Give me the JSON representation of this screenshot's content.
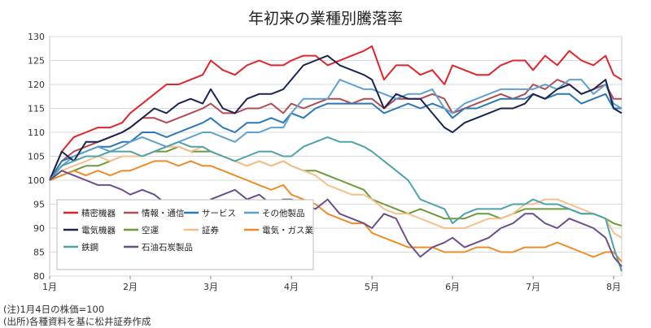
{
  "chart_data": {
    "type": "line",
    "title": "年初来の業種別騰落率",
    "xlabel": "",
    "ylabel": "",
    "ylim": [
      80,
      130
    ],
    "yticks": [
      80,
      85,
      90,
      95,
      100,
      105,
      110,
      115,
      120,
      125,
      130
    ],
    "xticks": [
      {
        "label": "1月",
        "x": 0
      },
      {
        "label": "2月",
        "x": 1
      },
      {
        "label": "3月",
        "x": 2
      },
      {
        "label": "4月",
        "x": 3
      },
      {
        "label": "5月",
        "x": 4
      },
      {
        "label": "6月",
        "x": 5
      },
      {
        "label": "7月",
        "x": 6
      },
      {
        "label": "8月",
        "x": 7
      }
    ],
    "xlim": [
      0,
      7.1
    ],
    "grid": "horizontal",
    "legend_placement": "bottom-left",
    "series": [
      {
        "name": "精密機器",
        "color": "#e3232a",
        "x": [
          0,
          0.15,
          0.3,
          0.45,
          0.6,
          0.75,
          0.9,
          1.0,
          1.15,
          1.3,
          1.45,
          1.6,
          1.75,
          1.9,
          2.0,
          2.15,
          2.3,
          2.45,
          2.6,
          2.75,
          2.9,
          3.0,
          3.15,
          3.3,
          3.45,
          3.6,
          3.75,
          3.9,
          4.0,
          4.15,
          4.3,
          4.45,
          4.6,
          4.75,
          4.9,
          5.0,
          5.15,
          5.3,
          5.45,
          5.6,
          5.75,
          5.9,
          6.0,
          6.15,
          6.3,
          6.45,
          6.6,
          6.75,
          6.9,
          7.0,
          7.1
        ],
        "y": [
          100,
          106,
          109,
          110,
          111,
          111,
          112,
          114,
          116,
          118,
          120,
          120,
          121,
          122,
          125,
          123,
          122,
          124,
          125,
          124,
          124,
          125,
          126,
          126,
          124,
          125,
          126,
          127,
          128,
          121,
          124,
          124,
          122,
          123,
          120,
          124,
          123,
          122,
          122,
          124,
          125,
          125,
          123,
          126,
          124,
          127,
          125,
          124,
          126,
          122,
          121
        ]
      },
      {
        "name": "情報・通信",
        "color": "#b24b53",
        "x": [
          0,
          0.15,
          0.3,
          0.45,
          0.6,
          0.75,
          0.9,
          1.0,
          1.15,
          1.3,
          1.45,
          1.6,
          1.75,
          1.9,
          2.0,
          2.15,
          2.3,
          2.45,
          2.6,
          2.75,
          2.9,
          3.0,
          3.15,
          3.3,
          3.45,
          3.6,
          3.75,
          3.9,
          4.0,
          4.15,
          4.3,
          4.45,
          4.6,
          4.75,
          4.9,
          5.0,
          5.15,
          5.3,
          5.45,
          5.6,
          5.75,
          5.9,
          6.0,
          6.15,
          6.3,
          6.45,
          6.6,
          6.75,
          6.9,
          7.0,
          7.1
        ],
        "y": [
          100,
          104,
          106,
          107,
          108,
          109,
          110,
          111,
          113,
          113,
          112,
          113,
          114,
          115,
          116,
          114,
          114,
          115,
          115,
          116,
          114,
          116,
          115,
          116,
          117,
          117,
          116,
          117,
          117,
          115,
          117,
          117,
          117,
          118,
          117,
          114,
          115,
          116,
          117,
          118,
          117,
          118,
          120,
          119,
          121,
          120,
          118,
          119,
          120,
          117,
          117
        ]
      },
      {
        "name": "サービス",
        "color": "#2a78b8",
        "x": [
          0,
          0.15,
          0.3,
          0.45,
          0.6,
          0.75,
          0.9,
          1.0,
          1.15,
          1.3,
          1.45,
          1.6,
          1.75,
          1.9,
          2.0,
          2.15,
          2.3,
          2.45,
          2.6,
          2.75,
          2.9,
          3.0,
          3.15,
          3.3,
          3.45,
          3.6,
          3.75,
          3.9,
          4.0,
          4.15,
          4.3,
          4.45,
          4.6,
          4.75,
          4.9,
          5.0,
          5.15,
          5.3,
          5.45,
          5.6,
          5.75,
          5.9,
          6.0,
          6.15,
          6.3,
          6.45,
          6.6,
          6.75,
          6.9,
          7.0,
          7.1
        ],
        "y": [
          100,
          104,
          105,
          106,
          107,
          107,
          108,
          108,
          110,
          110,
          109,
          110,
          111,
          112,
          113,
          111,
          110,
          112,
          112,
          113,
          112,
          114,
          113,
          115,
          116,
          116,
          116,
          116,
          116,
          114,
          115,
          116,
          115,
          116,
          115,
          113,
          115,
          115,
          116,
          117,
          117,
          117,
          118,
          117,
          118,
          118,
          116,
          117,
          118,
          115,
          115
        ]
      },
      {
        "name": "その他製品",
        "color": "#5fa0cf",
        "x": [
          0,
          0.15,
          0.3,
          0.45,
          0.6,
          0.75,
          0.9,
          1.0,
          1.15,
          1.3,
          1.45,
          1.6,
          1.75,
          1.9,
          2.0,
          2.15,
          2.3,
          2.45,
          2.6,
          2.75,
          2.9,
          3.0,
          3.15,
          3.3,
          3.45,
          3.6,
          3.75,
          3.9,
          4.0,
          4.15,
          4.3,
          4.45,
          4.6,
          4.75,
          4.9,
          5.0,
          5.15,
          5.3,
          5.45,
          5.6,
          5.75,
          5.9,
          6.0,
          6.15,
          6.3,
          6.45,
          6.6,
          6.75,
          6.9,
          7.0,
          7.1
        ],
        "y": [
          100,
          103,
          105,
          106,
          107,
          106,
          107,
          108,
          109,
          108,
          107,
          108,
          109,
          110,
          110,
          109,
          108,
          110,
          110,
          111,
          111,
          114,
          117,
          117,
          117,
          121,
          120,
          119,
          119,
          118,
          117,
          118,
          118,
          119,
          115,
          114,
          116,
          117,
          118,
          119,
          119,
          119,
          119,
          120,
          119,
          121,
          121,
          118,
          120,
          116,
          115
        ]
      },
      {
        "name": "電気機器",
        "color": "#1b2450",
        "x": [
          0,
          0.15,
          0.3,
          0.45,
          0.6,
          0.75,
          0.9,
          1.0,
          1.15,
          1.3,
          1.45,
          1.6,
          1.75,
          1.9,
          2.0,
          2.15,
          2.3,
          2.45,
          2.6,
          2.75,
          2.9,
          3.0,
          3.15,
          3.3,
          3.45,
          3.6,
          3.75,
          3.9,
          4.0,
          4.15,
          4.3,
          4.45,
          4.6,
          4.75,
          4.9,
          5.0,
          5.15,
          5.3,
          5.45,
          5.6,
          5.75,
          5.9,
          6.0,
          6.15,
          6.3,
          6.45,
          6.6,
          6.75,
          6.9,
          7.0,
          7.1
        ],
        "y": [
          100,
          106,
          104,
          108,
          108,
          109,
          110,
          111,
          113,
          115,
          114,
          116,
          117,
          116,
          119,
          115,
          114,
          117,
          118,
          118,
          119,
          121,
          124,
          125,
          126,
          124,
          123,
          122,
          121,
          115,
          118,
          117,
          117,
          114,
          111,
          110,
          112,
          113,
          114,
          115,
          115,
          116,
          118,
          117,
          119,
          120,
          118,
          119,
          121,
          115,
          114
        ]
      },
      {
        "name": "空運",
        "color": "#6e9a3a",
        "x": [
          0,
          0.15,
          0.3,
          0.45,
          0.6,
          0.75,
          0.9,
          1.0,
          1.15,
          1.3,
          1.45,
          1.6,
          1.75,
          1.9,
          2.0,
          2.15,
          2.3,
          2.45,
          2.6,
          2.75,
          2.9,
          3.0,
          3.15,
          3.3,
          3.45,
          3.6,
          3.75,
          3.9,
          4.0,
          4.15,
          4.3,
          4.45,
          4.6,
          4.75,
          4.9,
          5.0,
          5.15,
          5.3,
          5.45,
          5.6,
          5.75,
          5.9,
          6.0,
          6.15,
          6.3,
          6.45,
          6.6,
          6.75,
          6.9,
          7.0,
          7.1
        ],
        "y": [
          100,
          101,
          102,
          103,
          103,
          104,
          105,
          105,
          105,
          106,
          106,
          107,
          106,
          106,
          106,
          105,
          104,
          103,
          104,
          103,
          104,
          103,
          102,
          102,
          101,
          100,
          99,
          98,
          96,
          95,
          94,
          93,
          94,
          93,
          92,
          92,
          92,
          93,
          93,
          92,
          93,
          94,
          94,
          94,
          94,
          94,
          93,
          93,
          92,
          91,
          90.5
        ]
      },
      {
        "name": "証券",
        "color": "#f6c08c",
        "x": [
          0,
          0.15,
          0.3,
          0.45,
          0.6,
          0.75,
          0.9,
          1.0,
          1.15,
          1.3,
          1.45,
          1.6,
          1.75,
          1.9,
          2.0,
          2.15,
          2.3,
          2.45,
          2.6,
          2.75,
          2.9,
          3.0,
          3.15,
          3.3,
          3.45,
          3.6,
          3.75,
          3.9,
          4.0,
          4.15,
          4.3,
          4.45,
          4.6,
          4.75,
          4.9,
          5.0,
          5.15,
          5.3,
          5.45,
          5.6,
          5.75,
          5.9,
          6.0,
          6.15,
          6.3,
          6.45,
          6.6,
          6.75,
          6.9,
          7.0,
          7.1
        ],
        "y": [
          100,
          102,
          103,
          104,
          105,
          104,
          105,
          105,
          105,
          106,
          107,
          107,
          106,
          107,
          106,
          105,
          104,
          103,
          104,
          103,
          104,
          103,
          102,
          101,
          99,
          98,
          97,
          97,
          96,
          94,
          93,
          93,
          92,
          91,
          90,
          90,
          90,
          91,
          92,
          92,
          93,
          95,
          95,
          96,
          96,
          95,
          94,
          93,
          92,
          89,
          88
        ]
      },
      {
        "name": "電気・ガス業",
        "color": "#ee8c2a",
        "x": [
          0,
          0.15,
          0.3,
          0.45,
          0.6,
          0.75,
          0.9,
          1.0,
          1.15,
          1.3,
          1.45,
          1.6,
          1.75,
          1.9,
          2.0,
          2.15,
          2.3,
          2.45,
          2.6,
          2.75,
          2.9,
          3.0,
          3.15,
          3.3,
          3.45,
          3.6,
          3.75,
          3.9,
          4.0,
          4.15,
          4.3,
          4.45,
          4.6,
          4.75,
          4.9,
          5.0,
          5.15,
          5.3,
          5.45,
          5.6,
          5.75,
          5.9,
          6.0,
          6.15,
          6.3,
          6.45,
          6.6,
          6.75,
          6.9,
          7.0,
          7.1
        ],
        "y": [
          100,
          101,
          102,
          101,
          102,
          101,
          102,
          102,
          103,
          104,
          104,
          103,
          104,
          103,
          103,
          102,
          101,
          100,
          99,
          98,
          99,
          97,
          96,
          95,
          93,
          92,
          91,
          91,
          89,
          88,
          87,
          86,
          86,
          86,
          85,
          85,
          85,
          86,
          86,
          85,
          85,
          86,
          86,
          86,
          87,
          86,
          85,
          84,
          85,
          85,
          83
        ]
      },
      {
        "name": "鉄鋼",
        "color": "#4ea3a8",
        "x": [
          0,
          0.15,
          0.3,
          0.45,
          0.6,
          0.75,
          0.9,
          1.0,
          1.15,
          1.3,
          1.45,
          1.6,
          1.75,
          1.9,
          2.0,
          2.15,
          2.3,
          2.45,
          2.6,
          2.75,
          2.9,
          3.0,
          3.15,
          3.3,
          3.45,
          3.6,
          3.75,
          3.9,
          4.0,
          4.15,
          4.3,
          4.45,
          4.6,
          4.75,
          4.9,
          5.0,
          5.15,
          5.3,
          5.45,
          5.6,
          5.75,
          5.9,
          6.0,
          6.15,
          6.3,
          6.45,
          6.6,
          6.75,
          6.9,
          7.0,
          7.1
        ],
        "y": [
          100,
          103,
          104,
          105,
          105,
          106,
          106,
          106,
          105,
          106,
          107,
          108,
          107,
          107,
          106,
          105,
          104,
          105,
          106,
          106,
          105,
          105,
          107,
          108,
          109,
          108,
          108,
          107,
          106,
          104,
          102,
          100,
          96,
          95,
          94,
          91,
          93,
          94,
          94,
          94,
          95,
          95,
          96,
          95,
          95,
          94,
          93,
          93,
          92,
          86,
          81
        ]
      },
      {
        "name": "石油石炭製品",
        "color": "#6a4f8a",
        "x": [
          0,
          0.15,
          0.3,
          0.45,
          0.6,
          0.75,
          0.9,
          1.0,
          1.15,
          1.3,
          1.45,
          1.6,
          1.75,
          1.9,
          2.0,
          2.15,
          2.3,
          2.45,
          2.6,
          2.75,
          2.9,
          3.0,
          3.15,
          3.3,
          3.45,
          3.6,
          3.75,
          3.9,
          4.0,
          4.15,
          4.3,
          4.45,
          4.6,
          4.75,
          4.9,
          5.0,
          5.15,
          5.3,
          5.45,
          5.6,
          5.75,
          5.9,
          6.0,
          6.15,
          6.3,
          6.45,
          6.6,
          6.75,
          6.9,
          7.0,
          7.1
        ],
        "y": [
          100,
          102,
          101,
          100,
          99,
          99,
          98,
          97,
          98,
          97,
          95,
          92,
          93,
          94,
          96,
          97,
          98,
          96,
          97,
          95,
          96,
          96,
          95,
          94,
          96,
          93,
          92,
          91,
          90,
          93,
          92,
          87,
          84,
          86,
          87,
          88,
          86,
          87,
          88,
          90,
          91,
          93,
          93,
          91,
          90,
          92,
          91,
          90,
          88,
          84,
          82
        ]
      }
    ]
  },
  "notes": {
    "note1": "(注)1月4日の株価=100",
    "note2": "(出所)各種資料を基に松井証券作成"
  }
}
